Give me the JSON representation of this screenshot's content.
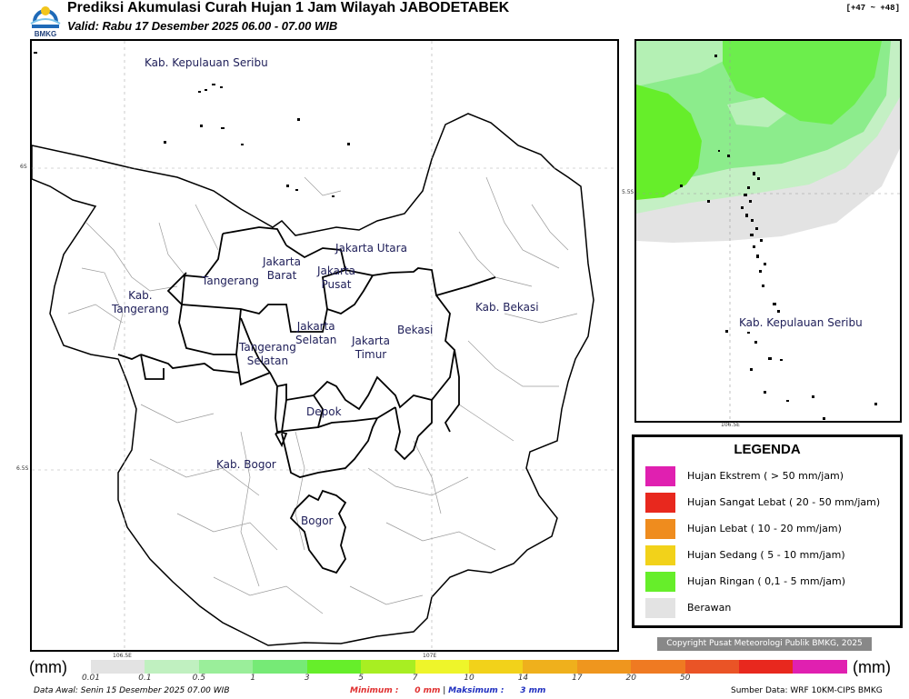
{
  "header": {
    "logo_text": "BMKG",
    "title": "Prediksi Akumulasi Curah Hujan 1 Jam Wilayah JABODETABEK",
    "valid": "Valid: Rabu 17 Desember 2025 06.00 - 07.00 WIB",
    "range": "[+47 ~ +48]"
  },
  "main_map": {
    "labels": [
      {
        "id": "kep-seribu",
        "text": "Kab. Kepulauan Seribu"
      },
      {
        "id": "jakarta-utara",
        "text": "Jakarta Utara"
      },
      {
        "id": "jakarta-barat",
        "text": "Jakarta\nBarat"
      },
      {
        "id": "jakarta-pusat",
        "text": "Jakarta\nPusat"
      },
      {
        "id": "tangerang",
        "text": "Tangerang"
      },
      {
        "id": "kab-tangerang",
        "text": "Kab.\nTangerang"
      },
      {
        "id": "jakarta-selatan",
        "text": "Jakarta\nSelatan"
      },
      {
        "id": "jakarta-timur",
        "text": "Jakarta\nTimur"
      },
      {
        "id": "bekasi",
        "text": "Bekasi"
      },
      {
        "id": "kab-bekasi",
        "text": "Kab. Bekasi"
      },
      {
        "id": "tangerang-selatan",
        "text": "Tangerang\nSelatan"
      },
      {
        "id": "depok",
        "text": "Depok"
      },
      {
        "id": "kab-bogor",
        "text": "Kab. Bogor"
      },
      {
        "id": "bogor",
        "text": "Bogor"
      }
    ],
    "coords": {
      "lat_top": "6S",
      "lat_bottom": "6.5S",
      "lon_left": "106.5E",
      "lon_right": "107E"
    }
  },
  "inset_map": {
    "label": "Kab. Kepulauan Seribu",
    "coords": {
      "lat": "5.5S",
      "lon": "106.5E"
    }
  },
  "legend": {
    "title": "LEGENDA",
    "items": [
      {
        "label": "Hujan Ekstrem ( > 50 mm/jam)",
        "color": "#e020b0"
      },
      {
        "label": "Hujan Sangat Lebat ( 20 - 50 mm/jam)",
        "color": "#e8281e"
      },
      {
        "label": "Hujan Lebat ( 10 - 20 mm/jam)",
        "color": "#ef8c1e"
      },
      {
        "label": "Hujan Sedang ( 5 - 10 mm/jam)",
        "color": "#f2d21a"
      },
      {
        "label": "Hujan Ringan ( 0,1 - 5 mm/jam)",
        "color": "#66ee2a"
      },
      {
        "label": "Berawan",
        "color": "#e3e3e3"
      }
    ]
  },
  "copyright": "Copyright Pusat Meteorologi Publik BMKG, 2025",
  "scale": {
    "unit": "(mm)",
    "colors": [
      "#e3e3e3",
      "#c0f0c0",
      "#9aee9a",
      "#76ea76",
      "#66ee2a",
      "#a8ee22",
      "#eef52a",
      "#f2d21a",
      "#efb01c",
      "#ef961e",
      "#ef7a22",
      "#ea5426",
      "#e8281e",
      "#e020b0"
    ],
    "ticks": [
      "0.01",
      "0.1",
      "0.5",
      "1",
      "3",
      "5",
      "7",
      "10",
      "14",
      "17",
      "20",
      "50"
    ]
  },
  "footer": {
    "data_awal": "Data Awal: Senin 15 Desember 2025 07.00 WIB",
    "minimum_label": "Minimum :",
    "minimum_value": "0 mm",
    "separator": "|",
    "maksimum_label": "Maksimum :",
    "maksimum_value": "3 mm",
    "source": "Sumber Data: WRF 10KM-CIPS BMKG"
  }
}
